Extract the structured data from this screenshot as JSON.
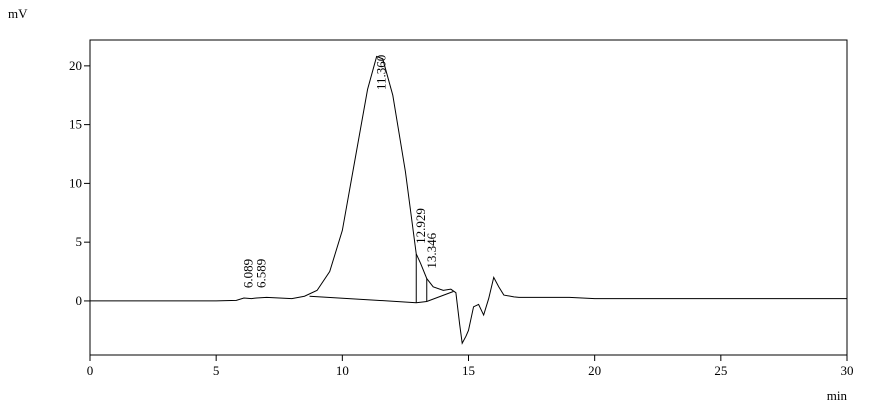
{
  "chart_data": {
    "type": "line",
    "y_label": "mV",
    "x_label": "min",
    "xlim": [
      0,
      30
    ],
    "ylim": [
      -4.6,
      22.2
    ],
    "xticks": [
      0,
      5,
      10,
      15,
      20,
      25,
      30
    ],
    "yticks": [
      0,
      5,
      10,
      15,
      20
    ],
    "grid": false,
    "color": "#000000",
    "x": [
      0,
      5,
      5.8,
      6.1,
      6.4,
      6.6,
      7.0,
      7.5,
      8.0,
      8.5,
      9,
      9.5,
      10,
      10.5,
      11,
      11.36,
      11.6,
      12,
      12.5,
      12.929,
      13.1,
      13.346,
      13.6,
      14,
      14.3,
      14.5,
      14.65,
      14.75,
      14.9,
      15,
      15.2,
      15.4,
      15.6,
      15.8,
      16,
      16.2,
      16.4,
      16.8,
      17,
      19,
      20,
      25,
      30
    ],
    "values": [
      0,
      0,
      0.05,
      0.25,
      0.2,
      0.25,
      0.3,
      0.25,
      0.2,
      0.4,
      0.9,
      2.5,
      6,
      12,
      18,
      20.8,
      20.6,
      17.5,
      11,
      4.0,
      3.2,
      1.9,
      1.2,
      0.9,
      1.0,
      0.7,
      -2.0,
      -3.6,
      -3.0,
      -2.5,
      -0.5,
      -0.3,
      -1.2,
      0.2,
      2.0,
      1.2,
      0.5,
      0.35,
      0.3,
      0.3,
      0.2,
      0.2,
      0.2
    ],
    "baseline": {
      "x": [
        8.7,
        12.929,
        13.346,
        14.4
      ],
      "values": [
        0.4,
        -0.15,
        -0.05,
        0.8
      ]
    },
    "annotations": [
      {
        "text": "6.089",
        "x": 6.089
      },
      {
        "text": "6.589",
        "x": 6.589
      },
      {
        "text": "11.360",
        "x": 11.36
      },
      {
        "text": "12.929",
        "x": 12.929
      },
      {
        "text": "13.346",
        "x": 13.346
      }
    ]
  }
}
